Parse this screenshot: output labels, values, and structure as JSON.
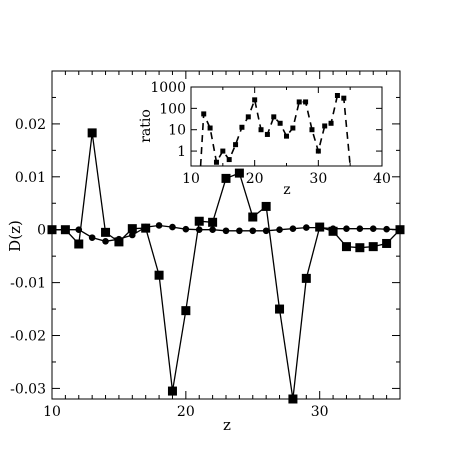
{
  "chart_data": [
    {
      "type": "line",
      "panel": "main",
      "xlabel": "z",
      "ylabel": "D(z)",
      "xlim": [
        10,
        36
      ],
      "ylim": [
        -0.032,
        0.03
      ],
      "xticks": [
        10,
        20,
        30
      ],
      "xtick_labels": [
        "10",
        "20",
        "30"
      ],
      "yticks": [
        0.02,
        0.01,
        0,
        -0.01,
        -0.02,
        -0.03
      ],
      "ytick_labels": [
        "0.02",
        "0.01",
        "0",
        "-0.01",
        "-0.02",
        "-0.03"
      ],
      "grid": false,
      "series": [
        {
          "marker": "square",
          "color": "#000000",
          "x": [
            10,
            11,
            12,
            13,
            14,
            15,
            16,
            17,
            18,
            19,
            20,
            21,
            22,
            23,
            24,
            25,
            26,
            27,
            28,
            29,
            30,
            31,
            32,
            33,
            34,
            35,
            36
          ],
          "y": [
            0,
            0,
            -0.0027,
            0.0183,
            -0.0005,
            -0.0023,
            0.0002,
            0.0003,
            -0.0086,
            -0.0305,
            -0.0153,
            0.0016,
            0.0014,
            0.0097,
            0.0107,
            0.0024,
            0.0044,
            -0.015,
            -0.032,
            -0.0092,
            0.0005,
            -0.0003,
            -0.0032,
            -0.0034,
            -0.0032,
            -0.0026,
            0
          ]
        },
        {
          "marker": "circle",
          "color": "#000000",
          "x": [
            10,
            11,
            12,
            13,
            14,
            15,
            16,
            17,
            18,
            19,
            20,
            21,
            22,
            23,
            24,
            25,
            26,
            27,
            28,
            29,
            30,
            31,
            32,
            33,
            34,
            35,
            36
          ],
          "y": [
            0,
            0,
            0,
            -0.0015,
            -0.0022,
            -0.0018,
            -0.001,
            0.0005,
            0.0008,
            0.0005,
            0.0001,
            0,
            0,
            -0.0002,
            -0.0002,
            -0.0002,
            -0.0002,
            0,
            0.0002,
            0.0004,
            0.0004,
            0.0002,
            0.0002,
            0.0002,
            0.0002,
            0.0001,
            0
          ]
        }
      ]
    },
    {
      "type": "line",
      "panel": "inset",
      "xlabel": "z",
      "ylabel": "ratio",
      "xlim": [
        10,
        40
      ],
      "ylim": [
        0.2,
        1000
      ],
      "yscale": "log",
      "xticks": [
        10,
        20,
        30,
        40
      ],
      "xtick_labels": [
        "10",
        "20",
        "30",
        "40"
      ],
      "yticks": [
        1,
        10,
        100,
        1000
      ],
      "ytick_labels": [
        "1",
        "10",
        "100",
        "1000"
      ],
      "grid": false,
      "series": [
        {
          "marker": "small-square",
          "linestyle": "dashed",
          "color": "#000000",
          "x": [
            11.5,
            12,
            13,
            14,
            15,
            16,
            17,
            18,
            19,
            20,
            21,
            22,
            23,
            24,
            25,
            26,
            27,
            28,
            29,
            30,
            31,
            32,
            33,
            34,
            35
          ],
          "y": [
            0.2,
            55,
            12,
            0.3,
            1,
            0.4,
            2,
            13,
            40,
            250,
            10,
            6,
            40,
            20,
            5,
            12,
            200,
            200,
            10,
            1,
            15,
            20,
            400,
            300,
            0.2
          ]
        }
      ]
    }
  ]
}
